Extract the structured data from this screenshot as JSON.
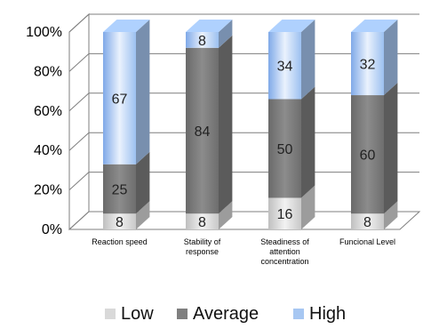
{
  "chart_data": {
    "type": "bar",
    "stacked": true,
    "percent": true,
    "three_d": true,
    "categories": [
      "Reaction speed",
      "Stability of response",
      "Steadiness of attention concentration",
      "Funcional Level"
    ],
    "category_lines": [
      [
        "Reaction speed"
      ],
      [
        "Stability of",
        "response"
      ],
      [
        "Steadiness of",
        "attention",
        "concentration"
      ],
      [
        "Funcional Level"
      ]
    ],
    "series": [
      {
        "name": "Low",
        "values": [
          8,
          8,
          16,
          8
        ],
        "color": "#d9d9d9"
      },
      {
        "name": "Average",
        "values": [
          25,
          84,
          50,
          60
        ],
        "color": "#7f7f7f"
      },
      {
        "name": "High",
        "values": [
          67,
          8,
          34,
          32
        ],
        "color": "#a7c7f2"
      }
    ],
    "yticks": [
      "0%",
      "20%",
      "40%",
      "60%",
      "80%",
      "100%"
    ],
    "ylim": [
      0,
      100
    ],
    "grid": true,
    "legend_position": "bottom"
  }
}
